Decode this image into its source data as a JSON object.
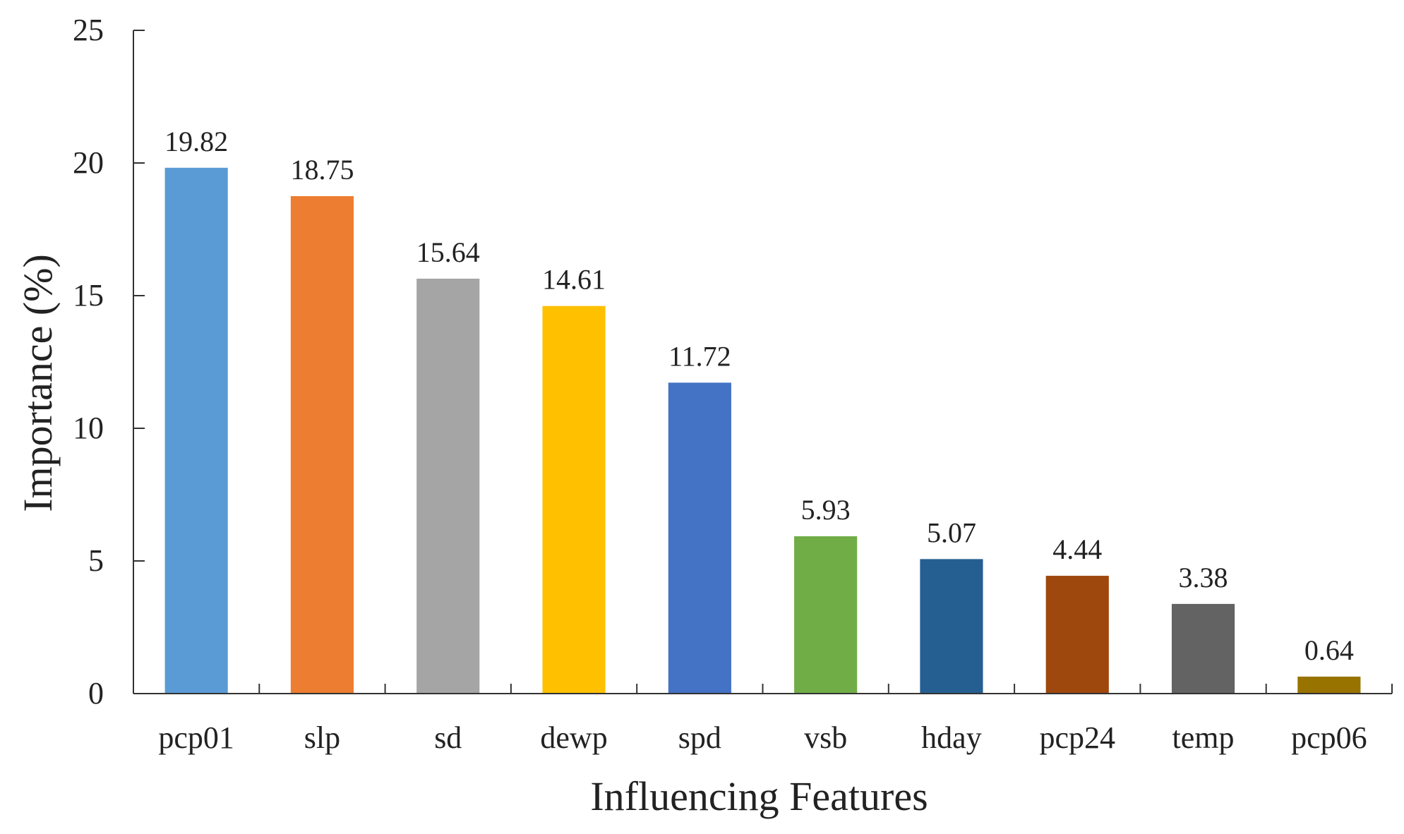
{
  "chart_data": {
    "type": "bar",
    "title": "",
    "xlabel": "Influencing Features",
    "ylabel": "Importance (%)",
    "ylim": [
      0,
      25
    ],
    "yticks": [
      0,
      5,
      10,
      15,
      20,
      25
    ],
    "categories": [
      "pcp01",
      "slp",
      "sd",
      "dewp",
      "spd",
      "vsb",
      "hday",
      "pcp24",
      "temp",
      "pcp06"
    ],
    "values": [
      19.82,
      18.75,
      15.64,
      14.61,
      11.72,
      5.93,
      5.07,
      4.44,
      3.38,
      0.64
    ],
    "value_labels": [
      "19.82",
      "18.75",
      "15.64",
      "14.61",
      "11.72",
      "5.93",
      "5.07",
      "4.44",
      "3.38",
      "0.64"
    ],
    "colors": [
      "#5B9BD5",
      "#ED7D31",
      "#A5A5A5",
      "#FFC000",
      "#4472C4",
      "#70AD47",
      "#255E91",
      "#9E480E",
      "#636363",
      "#997300"
    ],
    "grid": false,
    "legend": "none"
  }
}
